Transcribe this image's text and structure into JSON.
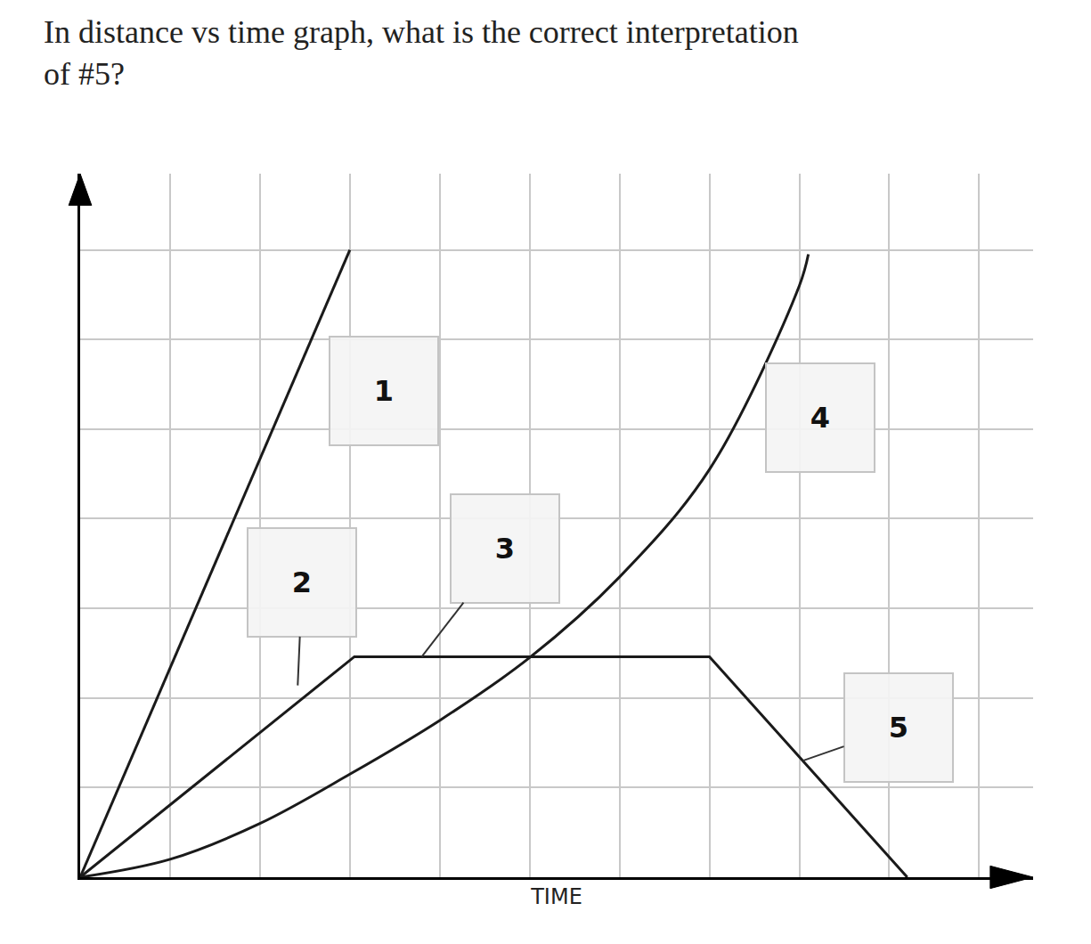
{
  "chart_data": {
    "type": "line",
    "title": "In distance vs time graph, what is the correct interpretation of #5?",
    "x_label": "TIME",
    "xlim": [
      0,
      10.6
    ],
    "ylim": [
      0,
      7.85
    ],
    "xticks": [
      0,
      1,
      2,
      3,
      4,
      5,
      6,
      7,
      8,
      9,
      10
    ],
    "yticks": [
      0,
      1,
      2,
      3,
      4,
      5,
      6,
      7
    ],
    "grid": true,
    "tick_labels": false,
    "series": [
      {
        "color": "#1a1a1a",
        "x": [
          0,
          3.0
        ],
        "values": [
          0,
          7.0
        ]
      },
      {
        "color": "#1a1a1a",
        "x": [
          0,
          3.05,
          7.0,
          9.2
        ],
        "values": [
          0,
          2.46,
          2.46,
          0
        ]
      },
      {
        "color": "#1a1a1a",
        "x": [
          0,
          1,
          2,
          3,
          4,
          5,
          6,
          7,
          8,
          8.1
        ],
        "values": [
          0,
          0.2,
          0.6,
          1.15,
          1.75,
          2.45,
          3.35,
          4.55,
          6.6,
          6.95
        ]
      }
    ],
    "annotations": [
      {
        "text": "1",
        "x": 3.38,
        "y": 5.43
      },
      {
        "text": "2",
        "x": 2.42,
        "y": 2.14,
        "label_x": 2.47,
        "label_y": 3.29
      },
      {
        "text": "3",
        "x": 3.8,
        "y": 2.46,
        "label_x": 4.73,
        "label_y": 3.67
      },
      {
        "text": "4",
        "x": 8.23,
        "y": 5.13
      },
      {
        "text": "5",
        "x": 8.04,
        "y": 1.3,
        "label_x": 9.1,
        "label_y": 1.67
      }
    ]
  }
}
